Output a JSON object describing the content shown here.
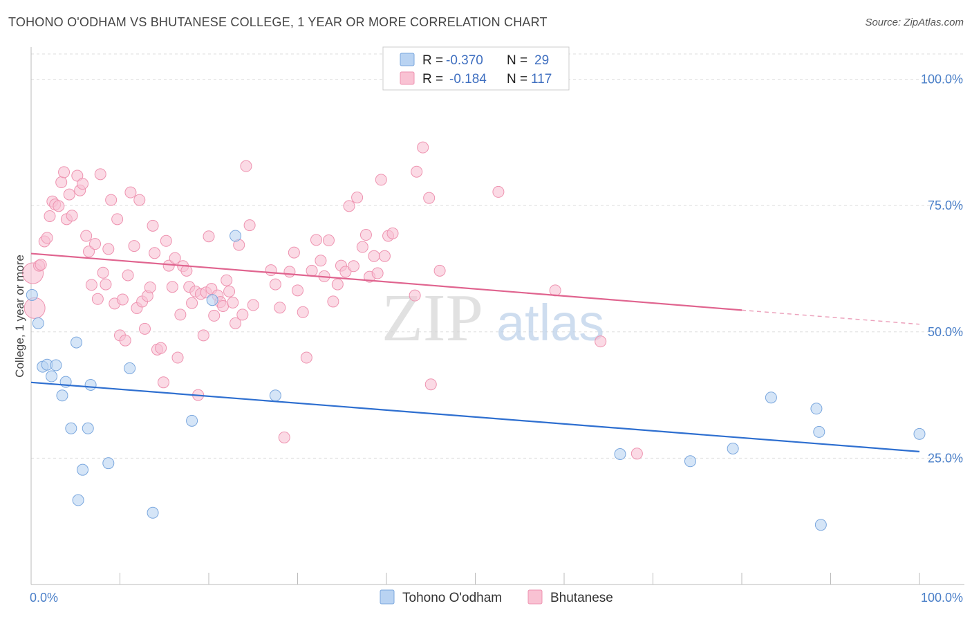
{
  "title": "TOHONO O'ODHAM VS BHUTANESE COLLEGE, 1 YEAR OR MORE CORRELATION CHART",
  "source": "Source: ZipAtlas.com",
  "watermark": {
    "zip": "ZIP",
    "atlas": "atlas"
  },
  "colors": {
    "blue_fill": "#b9d3f2",
    "blue_stroke": "#7aa7de",
    "blue_line": "#2e6fd0",
    "pink_fill": "#f9c2d3",
    "pink_stroke": "#ee93b0",
    "pink_line": "#e0648f",
    "grid": "#dddddd",
    "axis_text": "#4a7fc8"
  },
  "legend": {
    "rows": [
      {
        "r_label": "R =",
        "r_value": "-0.370",
        "n_label": "N =",
        "n_value": "29",
        "series": "blue"
      },
      {
        "r_label": "R =",
        "r_value": "-0.184",
        "n_label": "N =",
        "n_value": "117",
        "series": "pink"
      }
    ]
  },
  "chart_data": {
    "type": "scatter",
    "title": "TOHONO O'ODHAM VS BHUTANESE COLLEGE, 1 YEAR OR MORE CORRELATION CHART",
    "xlabel": "",
    "ylabel": "College, 1 year or more",
    "xlim": [
      0,
      100
    ],
    "ylim": [
      0,
      105
    ],
    "y_ticks": [
      {
        "value": 25,
        "label": "25.0%"
      },
      {
        "value": 50,
        "label": "50.0%"
      },
      {
        "value": 75,
        "label": "75.0%"
      },
      {
        "value": 100,
        "label": "100.0%"
      }
    ],
    "x_tick_labels": {
      "min": "0.0%",
      "max": "100.0%"
    },
    "x_minor_ticks": [
      10,
      20,
      30,
      40,
      50,
      60,
      70,
      80,
      90,
      100
    ],
    "series": [
      {
        "name": "Tohono O'odham",
        "color": "blue",
        "trend": {
          "x0": 0,
          "y0": 40.0,
          "x1": 100,
          "y1": 26.3,
          "solid_to": 100
        },
        "points": [
          [
            0.1,
            57.3
          ],
          [
            0.8,
            51.7
          ],
          [
            1.3,
            43.1
          ],
          [
            1.8,
            43.5
          ],
          [
            2.3,
            41.2
          ],
          [
            2.8,
            43.4
          ],
          [
            3.5,
            37.4
          ],
          [
            3.9,
            40.1
          ],
          [
            4.5,
            30.9
          ],
          [
            5.1,
            47.9
          ],
          [
            5.3,
            16.7
          ],
          [
            5.8,
            22.7
          ],
          [
            6.4,
            30.9
          ],
          [
            6.7,
            39.5
          ],
          [
            8.7,
            24.0
          ],
          [
            11.1,
            42.8
          ],
          [
            13.7,
            14.2
          ],
          [
            18.1,
            32.4
          ],
          [
            20.4,
            56.3
          ],
          [
            23.0,
            69.0
          ],
          [
            27.5,
            37.4
          ],
          [
            66.3,
            25.8
          ],
          [
            74.2,
            24.4
          ],
          [
            79.0,
            26.9
          ],
          [
            83.3,
            37.0
          ],
          [
            88.4,
            34.8
          ],
          [
            88.7,
            30.2
          ],
          [
            88.9,
            11.8
          ],
          [
            100.0,
            29.8
          ]
        ]
      },
      {
        "name": "Bhutanese",
        "color": "pink",
        "trend": {
          "x0": 0,
          "y0": 65.5,
          "x1": 100,
          "y1": 51.5,
          "solid_to": 80
        },
        "points": [
          [
            0.2,
            61.6
          ],
          [
            0.4,
            54.7
          ],
          [
            0.9,
            63.1
          ],
          [
            1.1,
            63.3
          ],
          [
            1.5,
            67.9
          ],
          [
            1.8,
            68.6
          ],
          [
            2.1,
            72.9
          ],
          [
            2.4,
            75.8
          ],
          [
            2.7,
            75.2
          ],
          [
            3.1,
            74.9
          ],
          [
            3.4,
            79.6
          ],
          [
            3.7,
            81.6
          ],
          [
            4.0,
            72.3
          ],
          [
            4.3,
            77.2
          ],
          [
            4.6,
            73.0
          ],
          [
            5.2,
            80.9
          ],
          [
            5.5,
            78.0
          ],
          [
            5.8,
            79.3
          ],
          [
            6.2,
            69.0
          ],
          [
            6.5,
            65.9
          ],
          [
            6.8,
            59.3
          ],
          [
            7.2,
            67.4
          ],
          [
            7.5,
            56.5
          ],
          [
            7.8,
            81.2
          ],
          [
            8.1,
            61.7
          ],
          [
            8.4,
            59.4
          ],
          [
            8.7,
            66.4
          ],
          [
            9.0,
            76.1
          ],
          [
            9.4,
            55.6
          ],
          [
            9.7,
            72.3
          ],
          [
            10.0,
            49.3
          ],
          [
            10.3,
            56.4
          ],
          [
            10.6,
            48.3
          ],
          [
            10.9,
            61.2
          ],
          [
            11.2,
            77.6
          ],
          [
            11.6,
            67.0
          ],
          [
            11.9,
            54.7
          ],
          [
            12.2,
            76.1
          ],
          [
            12.5,
            56.0
          ],
          [
            12.8,
            50.6
          ],
          [
            13.1,
            57.1
          ],
          [
            13.4,
            58.8
          ],
          [
            13.7,
            71.0
          ],
          [
            13.9,
            65.6
          ],
          [
            14.2,
            46.5
          ],
          [
            14.6,
            46.8
          ],
          [
            14.9,
            40.0
          ],
          [
            15.2,
            68.0
          ],
          [
            15.5,
            63.1
          ],
          [
            15.9,
            58.9
          ],
          [
            16.2,
            64.6
          ],
          [
            16.5,
            44.9
          ],
          [
            16.8,
            53.4
          ],
          [
            17.1,
            63.0
          ],
          [
            17.5,
            62.1
          ],
          [
            17.8,
            58.9
          ],
          [
            18.1,
            55.7
          ],
          [
            18.5,
            58.0
          ],
          [
            18.8,
            37.5
          ],
          [
            19.1,
            57.5
          ],
          [
            19.4,
            49.3
          ],
          [
            19.7,
            57.8
          ],
          [
            20.0,
            68.9
          ],
          [
            20.3,
            58.5
          ],
          [
            20.6,
            53.2
          ],
          [
            21.0,
            57.2
          ],
          [
            21.3,
            55.9
          ],
          [
            21.6,
            55.1
          ],
          [
            22.0,
            60.2
          ],
          [
            22.3,
            58.0
          ],
          [
            22.7,
            55.8
          ],
          [
            23.0,
            51.7
          ],
          [
            23.4,
            67.2
          ],
          [
            23.8,
            53.4
          ],
          [
            24.2,
            82.8
          ],
          [
            24.6,
            71.1
          ],
          [
            25.0,
            55.3
          ],
          [
            27.0,
            62.2
          ],
          [
            27.5,
            59.4
          ],
          [
            28.0,
            54.8
          ],
          [
            28.5,
            29.1
          ],
          [
            29.1,
            61.9
          ],
          [
            29.6,
            65.7
          ],
          [
            30.0,
            58.2
          ],
          [
            30.6,
            53.9
          ],
          [
            31.0,
            44.9
          ],
          [
            31.6,
            62.1
          ],
          [
            32.1,
            68.2
          ],
          [
            32.6,
            64.1
          ],
          [
            33.0,
            61.0
          ],
          [
            33.5,
            68.1
          ],
          [
            34.0,
            56.0
          ],
          [
            34.5,
            59.4
          ],
          [
            34.9,
            63.1
          ],
          [
            35.4,
            61.9
          ],
          [
            35.8,
            74.9
          ],
          [
            36.3,
            63.0
          ],
          [
            36.7,
            76.6
          ],
          [
            37.3,
            66.8
          ],
          [
            37.7,
            69.2
          ],
          [
            38.1,
            60.9
          ],
          [
            38.6,
            65.0
          ],
          [
            39.0,
            61.6
          ],
          [
            39.4,
            80.1
          ],
          [
            39.8,
            65.0
          ],
          [
            40.2,
            69.0
          ],
          [
            40.7,
            69.5
          ],
          [
            43.2,
            57.2
          ],
          [
            43.4,
            81.7
          ],
          [
            44.1,
            86.5
          ],
          [
            44.8,
            76.5
          ],
          [
            45.0,
            39.6
          ],
          [
            46.0,
            62.1
          ],
          [
            52.6,
            77.7
          ],
          [
            59.0,
            58.2
          ],
          [
            64.1,
            48.1
          ],
          [
            68.2,
            25.9
          ]
        ]
      }
    ]
  },
  "bottom_legend": [
    {
      "label": "Tohono O'odham",
      "color": "blue"
    },
    {
      "label": "Bhutanese",
      "color": "pink"
    }
  ]
}
